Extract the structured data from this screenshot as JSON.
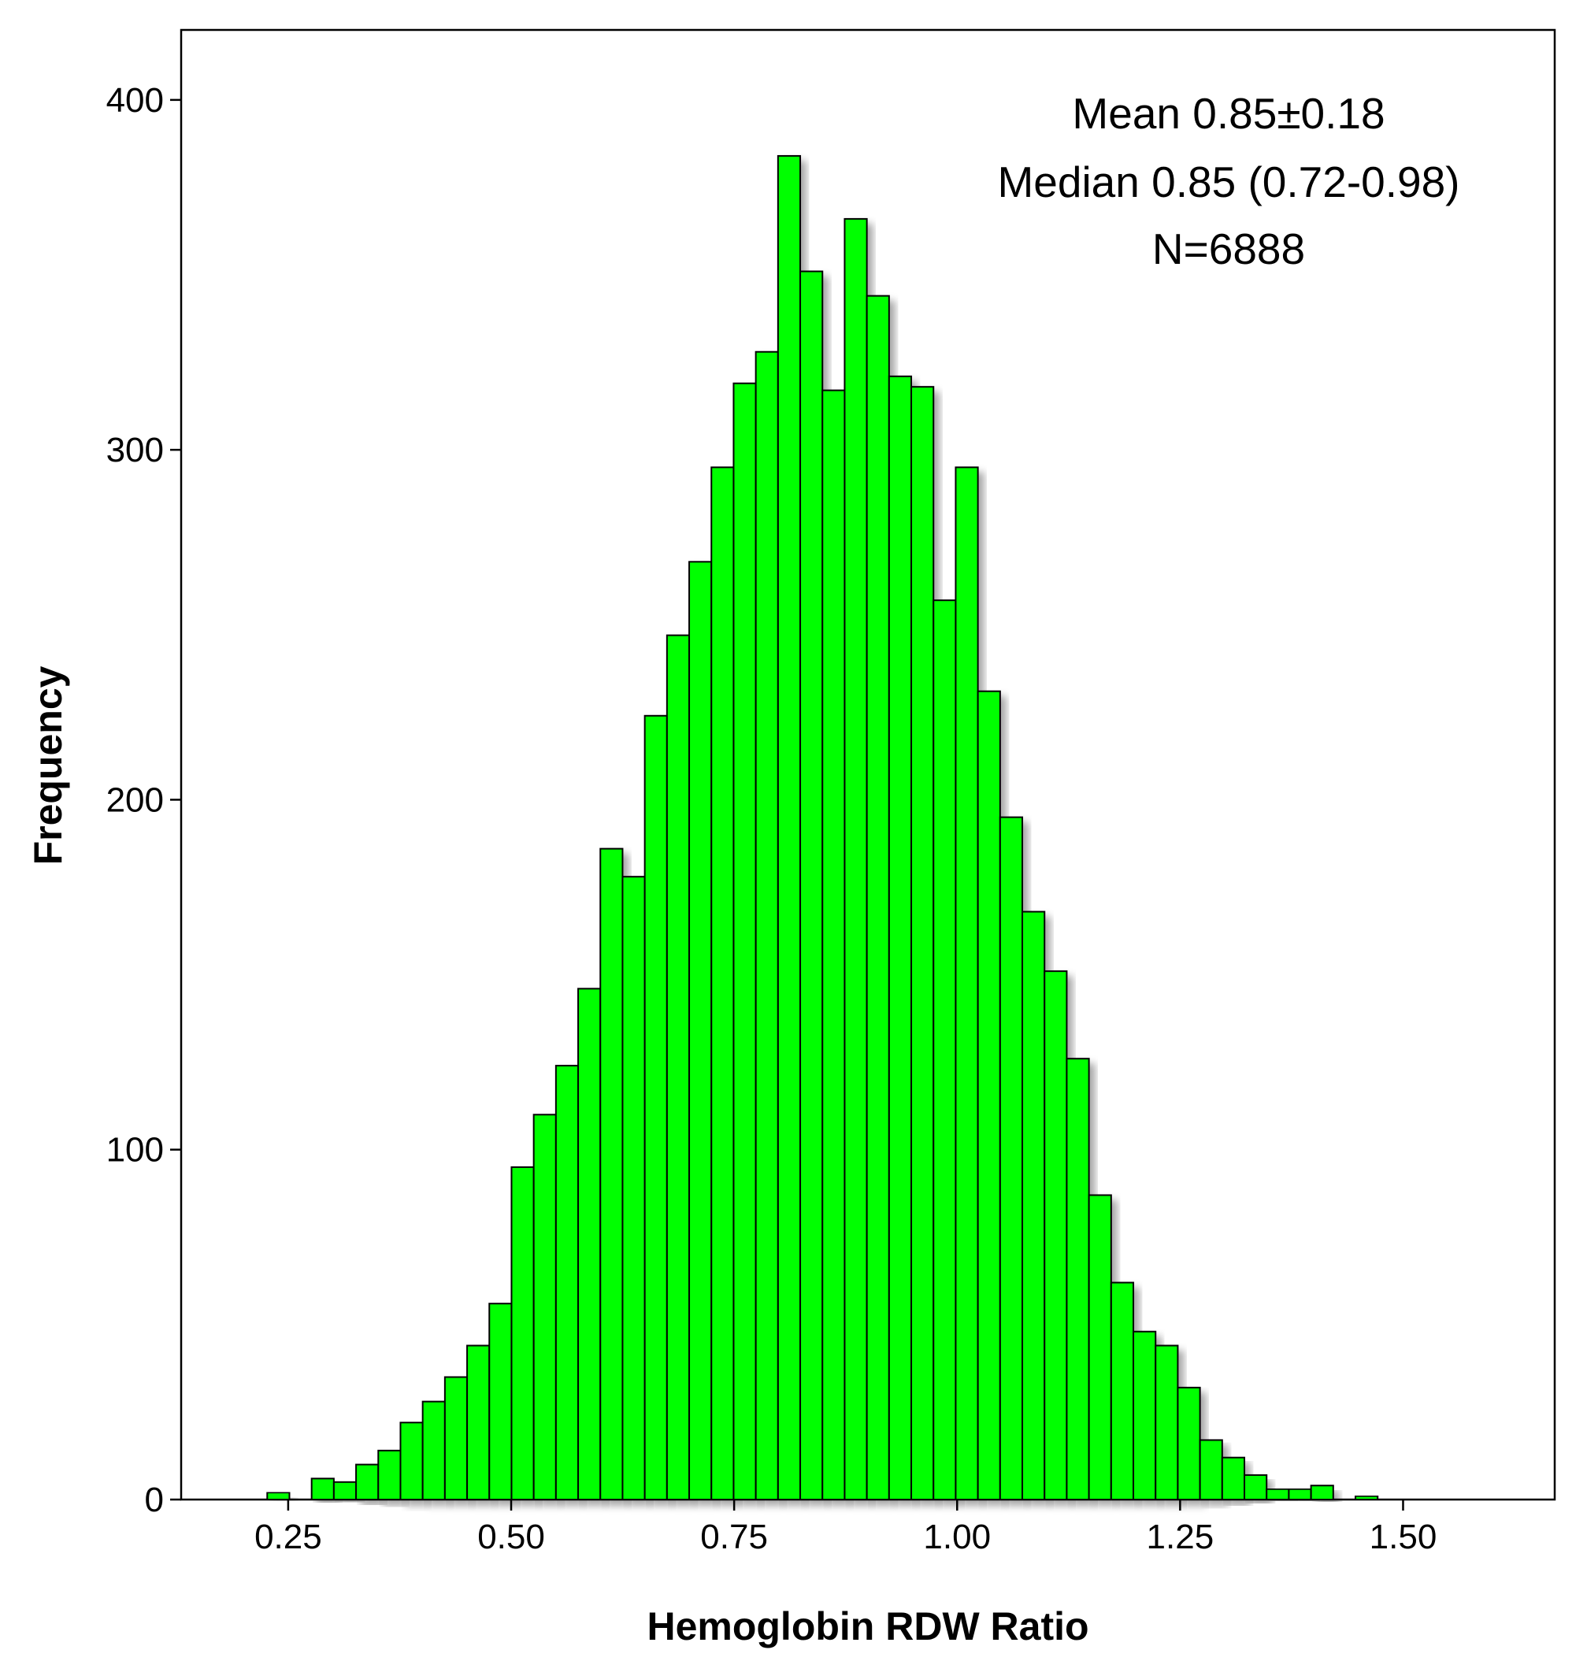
{
  "chart_data": {
    "type": "bar",
    "xlabel": "Hemoglobin RDW Ratio",
    "ylabel": "Frequency",
    "xlim": [
      0.13,
      1.67
    ],
    "ylim": [
      0,
      420
    ],
    "bin_start": 0.2265,
    "bin_width": 0.0249,
    "values": [
      2,
      0,
      6,
      5,
      10,
      14,
      22,
      28,
      35,
      44,
      56,
      95,
      110,
      124,
      146,
      186,
      178,
      224,
      247,
      268,
      295,
      319,
      328,
      384,
      351,
      317,
      366,
      344,
      321,
      318,
      257,
      295,
      231,
      195,
      168,
      151,
      126,
      87,
      62,
      48,
      44,
      32,
      17,
      12,
      7,
      3,
      3,
      4,
      0,
      1,
      0,
      0,
      0,
      0,
      0,
      0
    ],
    "xticks": [
      "0.25",
      "0.50",
      "0.75",
      "1.00",
      "1.25",
      "1.50"
    ],
    "xtick_values": [
      0.25,
      0.5,
      0.75,
      1.0,
      1.25,
      1.5
    ],
    "yticks": [
      "0",
      "100",
      "200",
      "300",
      "400"
    ],
    "ytick_values": [
      0,
      100,
      200,
      300,
      400
    ],
    "bar_color": "#00FF00",
    "annotations": [
      "Mean 0.85±0.18",
      "Median 0.85 (0.72-0.98)",
      "N=6888"
    ]
  }
}
